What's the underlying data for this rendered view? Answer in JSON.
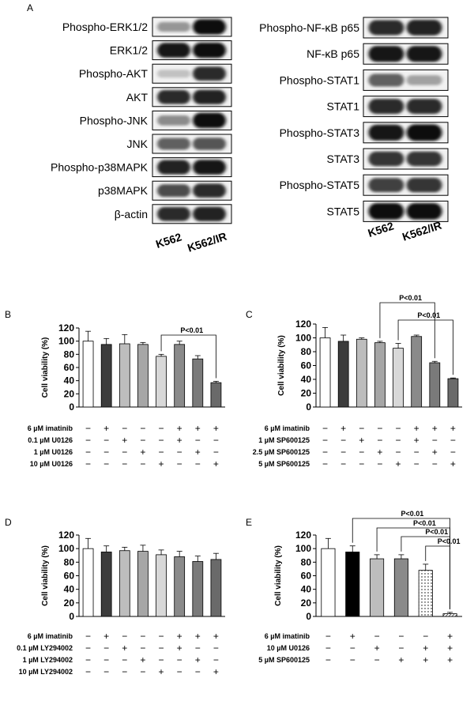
{
  "panel_letters": {
    "a": "A",
    "b": "B",
    "c": "C",
    "d": "D",
    "e": "E"
  },
  "blots": {
    "left": {
      "rows": [
        {
          "label": "Phospho-ERK1/2",
          "k562": 0.35,
          "k562ir": 1.0
        },
        {
          "label": "ERK1/2",
          "k562": 0.95,
          "k562ir": 1.0
        },
        {
          "label": "Phospho-AKT",
          "k562": 0.15,
          "k562ir": 0.85
        },
        {
          "label": "AKT",
          "k562": 0.85,
          "k562ir": 0.9
        },
        {
          "label": "Phospho-JNK",
          "k562": 0.4,
          "k562ir": 1.0
        },
        {
          "label": "JNK",
          "k562": 0.6,
          "k562ir": 0.65
        },
        {
          "label": "Phospho-p38MAPK",
          "k562": 0.9,
          "k562ir": 0.95
        },
        {
          "label": "p38MAPK",
          "k562": 0.7,
          "k562ir": 0.85
        },
        {
          "label": "β-actin",
          "k562": 0.85,
          "k562ir": 0.9
        }
      ],
      "lane_labels": [
        "K562",
        "K562/IR"
      ]
    },
    "right": {
      "rows": [
        {
          "label": "Phospho-NF-κB p65",
          "k562": 0.85,
          "k562ir": 0.9
        },
        {
          "label": "NF-κB p65",
          "k562": 0.95,
          "k562ir": 0.95
        },
        {
          "label": "Phospho-STAT1",
          "k562": 0.6,
          "k562ir": 0.3
        },
        {
          "label": "STAT1",
          "k562": 0.85,
          "k562ir": 0.85
        },
        {
          "label": "Phospho-STAT3",
          "k562": 0.95,
          "k562ir": 1.0
        },
        {
          "label": "STAT3",
          "k562": 0.8,
          "k562ir": 0.8
        },
        {
          "label": "Phospho-STAT5",
          "k562": 0.75,
          "k562ir": 0.8
        },
        {
          "label": "STAT5",
          "k562": 1.0,
          "k562ir": 1.0
        }
      ],
      "lane_labels": [
        "K562",
        "K562/IR"
      ]
    }
  },
  "chart_data": [
    {
      "panel": "B",
      "type": "bar",
      "ylabel": "Cell viability (%)",
      "ylim": [
        0,
        120
      ],
      "yticks": [
        0,
        20,
        40,
        60,
        80,
        100,
        120
      ],
      "values": [
        100,
        95,
        96,
        95,
        77,
        95,
        73,
        37
      ],
      "errors": [
        15,
        9,
        14,
        3,
        3,
        5,
        5,
        2
      ],
      "fills": [
        "#ffffff",
        "#3c3c3c",
        "#bdbdbd",
        "#a6a6a6",
        "#d8d8d8",
        "#8a8a8a",
        "#7a7a7a",
        "#6a6a6a"
      ],
      "row_labels": [
        "6 µM imatinib",
        "0.1 µM U0126",
        "1 µM U0126",
        "10 µM U0126"
      ],
      "signs": [
        [
          "−",
          "+",
          "−",
          "−",
          "−",
          "+",
          "+",
          "+"
        ],
        [
          "−",
          "−",
          "+",
          "−",
          "−",
          "+",
          "−",
          "−"
        ],
        [
          "−",
          "−",
          "−",
          "+",
          "−",
          "−",
          "+",
          "−"
        ],
        [
          "−",
          "−",
          "−",
          "−",
          "+",
          "−",
          "−",
          "+"
        ]
      ],
      "annotations": [
        {
          "text": "P<0.01",
          "from": 4,
          "to": 7
        }
      ]
    },
    {
      "panel": "C",
      "type": "bar",
      "ylabel": "Cell viability (%)",
      "ylim": [
        0,
        120
      ],
      "yticks": [
        0,
        20,
        40,
        60,
        80,
        100,
        120
      ],
      "values": [
        100,
        95,
        98,
        93,
        85,
        102,
        64,
        41
      ],
      "errors": [
        15,
        9,
        2,
        2,
        7,
        2,
        2,
        1
      ],
      "fills": [
        "#ffffff",
        "#3c3c3c",
        "#bdbdbd",
        "#a6a6a6",
        "#d8d8d8",
        "#8a8a8a",
        "#7a7a7a",
        "#6a6a6a"
      ],
      "row_labels": [
        "6 µM imatinib",
        "1 µM SP600125",
        "2.5 µM SP600125",
        "5 µM SP600125"
      ],
      "signs": [
        [
          "−",
          "+",
          "−",
          "−",
          "−",
          "+",
          "+",
          "+"
        ],
        [
          "−",
          "−",
          "+",
          "−",
          "−",
          "+",
          "−",
          "−"
        ],
        [
          "−",
          "−",
          "−",
          "+",
          "−",
          "−",
          "+",
          "−"
        ],
        [
          "−",
          "−",
          "−",
          "−",
          "+",
          "−",
          "−",
          "+"
        ]
      ],
      "annotations": [
        {
          "text": "P<0.01",
          "from": 3,
          "to": 6
        },
        {
          "text": "P<0.01",
          "from": 4,
          "to": 7
        }
      ]
    },
    {
      "panel": "D",
      "type": "bar",
      "ylabel": "Cell viability (%)",
      "ylim": [
        0,
        120
      ],
      "yticks": [
        0,
        20,
        40,
        60,
        80,
        100,
        120
      ],
      "values": [
        100,
        95,
        97,
        96,
        91,
        88,
        81,
        84
      ],
      "errors": [
        15,
        9,
        5,
        9,
        7,
        8,
        8,
        9
      ],
      "fills": [
        "#ffffff",
        "#3c3c3c",
        "#bdbdbd",
        "#a6a6a6",
        "#d8d8d8",
        "#8a8a8a",
        "#7a7a7a",
        "#6a6a6a"
      ],
      "row_labels": [
        "6 µM imatinib",
        "0.1 µM LY294002",
        "1 µM LY294002",
        "10 µM LY294002"
      ],
      "signs": [
        [
          "−",
          "+",
          "−",
          "−",
          "−",
          "+",
          "+",
          "+"
        ],
        [
          "−",
          "−",
          "+",
          "−",
          "−",
          "+",
          "−",
          "−"
        ],
        [
          "−",
          "−",
          "−",
          "+",
          "−",
          "−",
          "+",
          "−"
        ],
        [
          "−",
          "−",
          "−",
          "−",
          "+",
          "−",
          "−",
          "+"
        ]
      ],
      "annotations": []
    },
    {
      "panel": "E",
      "type": "bar",
      "ylabel": "Cell viability (%)",
      "ylim": [
        0,
        120
      ],
      "yticks": [
        0,
        20,
        40,
        60,
        80,
        100,
        120
      ],
      "values": [
        100,
        95,
        85,
        85,
        68,
        4
      ],
      "errors": [
        15,
        9,
        6,
        6,
        9,
        2
      ],
      "fills": [
        "#ffffff",
        "#000000",
        "#bdbdbd",
        "#8a8a8a",
        "dotted",
        "hatched"
      ],
      "row_labels": [
        "6 µM imatinib",
        "10 µM U0126",
        "5 µM SP600125"
      ],
      "signs": [
        [
          "−",
          "+",
          "−",
          "−",
          "−",
          "+"
        ],
        [
          "−",
          "−",
          "+",
          "−",
          "+",
          "+"
        ],
        [
          "−",
          "−",
          "−",
          "+",
          "+",
          "+"
        ]
      ],
      "annotations": [
        {
          "text": "P<0.01",
          "from": 1,
          "to": 5
        },
        {
          "text": "P<0.01",
          "from": 2,
          "to": 5
        },
        {
          "text": "P<0.01",
          "from": 3,
          "to": 5
        },
        {
          "text": "P<0.01",
          "from": 4,
          "to": 5
        }
      ]
    }
  ]
}
